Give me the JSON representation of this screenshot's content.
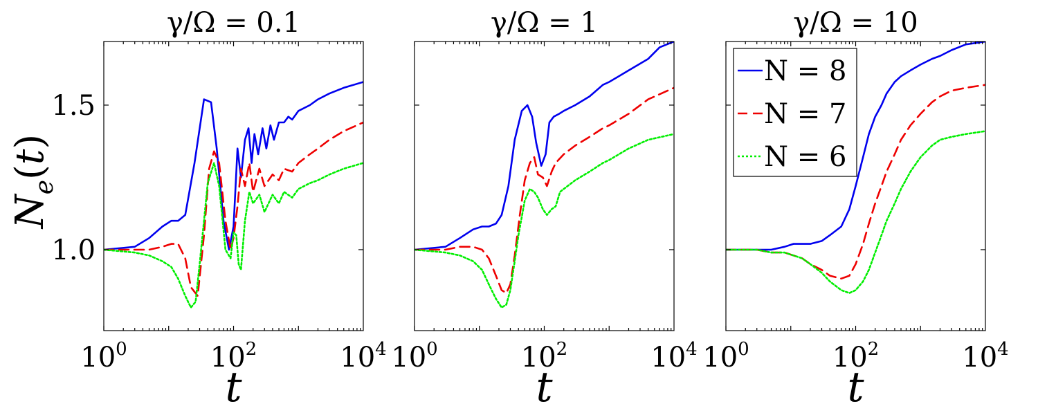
{
  "chart_data": {
    "type": "line",
    "ylabel": "N_e(t)",
    "xlabel": "t",
    "x_scale": "log",
    "xlim": [
      1,
      10000
    ],
    "ylim": [
      0.72,
      1.72
    ],
    "xticks": [
      {
        "base": "10",
        "exp": "0",
        "value": 1
      },
      {
        "base": "10",
        "exp": "2",
        "value": 100
      },
      {
        "base": "10",
        "exp": "4",
        "value": 10000
      }
    ],
    "yticks": [
      {
        "label": "1.0",
        "value": 1.0
      },
      {
        "label": "1.5",
        "value": 1.5
      }
    ],
    "legend": {
      "location": "upper-left of third panel",
      "entries": [
        {
          "label": "N = 8",
          "color": "#0000ee",
          "style": "solid"
        },
        {
          "label": "N = 7",
          "color": "#ee0000",
          "style": "dashed"
        },
        {
          "label": "N = 6",
          "color": "#00ee00",
          "style": "dotted"
        }
      ]
    },
    "panels": [
      {
        "title": "γ/Ω = 0.1",
        "series": [
          {
            "name": "N = 8",
            "x": [
              1,
              3,
              5,
              8,
              11,
              14,
              18,
              25,
              35,
              45,
              55,
              70,
              85,
              100,
              115,
              130,
              150,
              170,
              190,
              210,
              240,
              280,
              320,
              370,
              420,
              500,
              600,
              700,
              800,
              1000,
              1500,
              2000,
              3000,
              5000,
              10000
            ],
            "y": [
              1.0,
              1.01,
              1.04,
              1.08,
              1.1,
              1.1,
              1.12,
              1.3,
              1.52,
              1.51,
              1.35,
              1.1,
              1.0,
              1.08,
              1.35,
              1.25,
              1.38,
              1.42,
              1.3,
              1.4,
              1.33,
              1.42,
              1.35,
              1.43,
              1.38,
              1.44,
              1.44,
              1.46,
              1.45,
              1.48,
              1.5,
              1.52,
              1.54,
              1.56,
              1.58
            ]
          },
          {
            "name": "N = 7",
            "x": [
              1,
              3,
              5,
              8,
              11,
              14,
              18,
              22,
              28,
              35,
              42,
              50,
              60,
              75,
              90,
              100,
              115,
              130,
              150,
              175,
              200,
              250,
              300,
              400,
              500,
              600,
              800,
              1000,
              1500,
              2000,
              3000,
              5000,
              10000
            ],
            "y": [
              1.0,
              1.0,
              1.0,
              1.01,
              1.02,
              1.02,
              0.97,
              0.87,
              0.84,
              1.05,
              1.28,
              1.34,
              1.3,
              1.1,
              1.0,
              1.04,
              1.15,
              1.28,
              1.22,
              1.3,
              1.2,
              1.28,
              1.22,
              1.26,
              1.24,
              1.28,
              1.27,
              1.3,
              1.33,
              1.35,
              1.38,
              1.41,
              1.44
            ]
          },
          {
            "name": "N = 6",
            "x": [
              1,
              3,
              5,
              8,
              11,
              14,
              18,
              22,
              26,
              30,
              35,
              40,
              50,
              60,
              75,
              90,
              100,
              110,
              120,
              130,
              150,
              175,
              200,
              250,
              300,
              400,
              500,
              600,
              800,
              1000,
              1500,
              2000,
              3000,
              5000,
              10000
            ],
            "y": [
              1.0,
              0.99,
              0.98,
              0.96,
              0.94,
              0.9,
              0.84,
              0.8,
              0.82,
              0.95,
              1.1,
              1.23,
              1.3,
              1.22,
              1.0,
              0.97,
              1.06,
              1.05,
              0.95,
              0.93,
              1.1,
              1.2,
              1.16,
              1.19,
              1.13,
              1.19,
              1.16,
              1.2,
              1.18,
              1.21,
              1.23,
              1.24,
              1.26,
              1.28,
              1.3
            ]
          }
        ]
      },
      {
        "title": "γ/Ω = 1",
        "series": [
          {
            "name": "N = 8",
            "x": [
              1,
              3,
              5,
              8,
              11,
              14,
              18,
              22,
              28,
              35,
              45,
              55,
              65,
              75,
              90,
              105,
              120,
              140,
              170,
              200,
              300,
              500,
              800,
              1000,
              2000,
              4000,
              6000,
              10000
            ],
            "y": [
              1.0,
              1.01,
              1.04,
              1.07,
              1.08,
              1.08,
              1.09,
              1.12,
              1.22,
              1.38,
              1.48,
              1.5,
              1.46,
              1.37,
              1.29,
              1.33,
              1.44,
              1.46,
              1.47,
              1.48,
              1.5,
              1.53,
              1.57,
              1.58,
              1.62,
              1.66,
              1.7,
              1.72
            ]
          },
          {
            "name": "N = 7",
            "x": [
              1,
              3,
              5,
              8,
              11,
              14,
              18,
              22,
              26,
              30,
              35,
              42,
              50,
              60,
              70,
              80,
              95,
              110,
              130,
              150,
              200,
              300,
              500,
              800,
              1000,
              2000,
              4000,
              10000
            ],
            "y": [
              1.0,
              1.0,
              1.01,
              1.01,
              1.0,
              0.97,
              0.91,
              0.86,
              0.85,
              0.88,
              0.98,
              1.12,
              1.24,
              1.3,
              1.32,
              1.26,
              1.25,
              1.22,
              1.27,
              1.3,
              1.33,
              1.36,
              1.39,
              1.42,
              1.43,
              1.47,
              1.52,
              1.56
            ]
          },
          {
            "name": "N = 6",
            "x": [
              1,
              3,
              5,
              8,
              11,
              14,
              18,
              22,
              26,
              30,
              35,
              40,
              50,
              60,
              70,
              80,
              95,
              110,
              130,
              150,
              175,
              200,
              300,
              500,
              800,
              1000,
              2000,
              4000,
              10000
            ],
            "y": [
              1.0,
              0.99,
              0.98,
              0.96,
              0.93,
              0.88,
              0.83,
              0.8,
              0.81,
              0.86,
              0.96,
              1.05,
              1.17,
              1.21,
              1.2,
              1.18,
              1.14,
              1.12,
              1.14,
              1.15,
              1.2,
              1.21,
              1.24,
              1.27,
              1.3,
              1.31,
              1.35,
              1.38,
              1.4
            ]
          }
        ]
      },
      {
        "title": "γ/Ω = 10",
        "series": [
          {
            "name": "N = 8",
            "x": [
              1,
              3,
              5,
              8,
              11,
              15,
              20,
              30,
              40,
              60,
              80,
              100,
              130,
              160,
              200,
              250,
              300,
              400,
              500,
              700,
              1000,
              1500,
              2000,
              3000,
              5000,
              10000
            ],
            "y": [
              1.0,
              1.0,
              1.0,
              1.01,
              1.02,
              1.02,
              1.02,
              1.03,
              1.05,
              1.08,
              1.14,
              1.22,
              1.32,
              1.4,
              1.46,
              1.5,
              1.54,
              1.58,
              1.6,
              1.62,
              1.64,
              1.66,
              1.67,
              1.69,
              1.71,
              1.72
            ]
          },
          {
            "name": "N = 7",
            "x": [
              1,
              3,
              5,
              8,
              11,
              15,
              20,
              30,
              40,
              60,
              80,
              100,
              130,
              160,
              200,
              250,
              300,
              400,
              500,
              700,
              1000,
              1500,
              2000,
              3000,
              5000,
              10000
            ],
            "y": [
              1.0,
              1.0,
              0.99,
              0.99,
              0.98,
              0.97,
              0.95,
              0.93,
              0.91,
              0.9,
              0.91,
              0.95,
              1.02,
              1.09,
              1.16,
              1.22,
              1.27,
              1.33,
              1.38,
              1.43,
              1.47,
              1.51,
              1.53,
              1.55,
              1.56,
              1.57
            ]
          },
          {
            "name": "N = 6",
            "x": [
              1,
              3,
              5,
              8,
              11,
              15,
              20,
              30,
              40,
              60,
              80,
              100,
              130,
              160,
              200,
              250,
              300,
              400,
              500,
              700,
              1000,
              1500,
              2000,
              3000,
              5000,
              10000
            ],
            "y": [
              1.0,
              1.0,
              0.99,
              0.99,
              0.98,
              0.97,
              0.95,
              0.92,
              0.89,
              0.86,
              0.85,
              0.86,
              0.89,
              0.93,
              0.99,
              1.05,
              1.1,
              1.16,
              1.21,
              1.27,
              1.32,
              1.36,
              1.38,
              1.39,
              1.4,
              1.41
            ]
          }
        ]
      }
    ]
  }
}
